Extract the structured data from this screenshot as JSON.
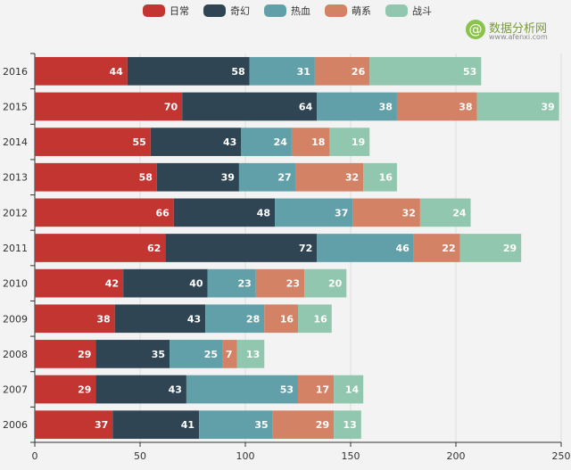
{
  "watermark": {
    "icon": "@",
    "title": "数据分析网",
    "url": "www.afenxi.com"
  },
  "chart_data": {
    "type": "bar",
    "orientation": "horizontal",
    "stacked": true,
    "title": "",
    "xlabel": "",
    "ylabel": "",
    "xlim": [
      0,
      250
    ],
    "x_ticks": [
      "0",
      "50",
      "100",
      "150",
      "200",
      "250"
    ],
    "grid": true,
    "legend_position": "top",
    "categories": [
      "2006",
      "2007",
      "2008",
      "2009",
      "2010",
      "2011",
      "2012",
      "2013",
      "2014",
      "2015",
      "2016"
    ],
    "series": [
      {
        "name": "日常",
        "color": "#c23531",
        "values": [
          37,
          29,
          29,
          38,
          42,
          62,
          66,
          58,
          55,
          70,
          44
        ]
      },
      {
        "name": "奇幻",
        "color": "#2f4554",
        "values": [
          41,
          43,
          35,
          43,
          40,
          72,
          48,
          39,
          43,
          64,
          58
        ]
      },
      {
        "name": "热血",
        "color": "#61a0a8",
        "values": [
          35,
          53,
          25,
          28,
          23,
          46,
          37,
          27,
          24,
          38,
          31
        ]
      },
      {
        "name": "萌系",
        "color": "#d48265",
        "values": [
          29,
          17,
          7,
          16,
          23,
          22,
          32,
          32,
          18,
          38,
          26
        ]
      },
      {
        "name": "战斗",
        "color": "#91c7ae",
        "values": [
          13,
          14,
          13,
          16,
          20,
          29,
          24,
          16,
          19,
          39,
          53
        ]
      }
    ]
  }
}
